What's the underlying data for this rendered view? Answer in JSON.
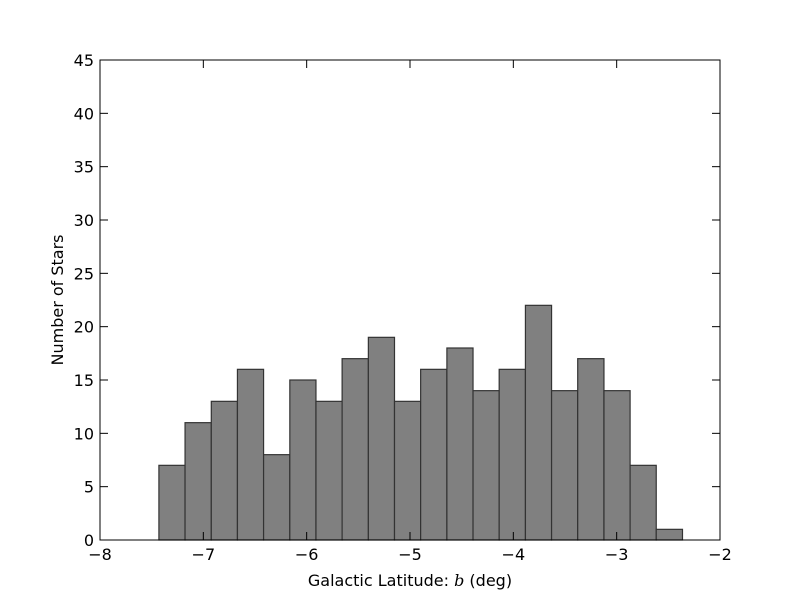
{
  "chart_data": {
    "type": "histogram",
    "title": "",
    "xlabel": "Galactic Latitude: ",
    "xlabel_symbol": "b",
    "xlabel_unit": " (deg)",
    "ylabel": "Number of Stars",
    "xlim": [
      -8,
      -2
    ],
    "ylim": [
      0,
      45
    ],
    "xticks": [
      -8,
      -7,
      -6,
      -5,
      -4,
      -3,
      -2
    ],
    "xtick_labels": [
      "−8",
      "−7",
      "−6",
      "−5",
      "−4",
      "−3",
      "−2"
    ],
    "yticks": [
      0,
      5,
      10,
      15,
      20,
      25,
      30,
      35,
      40,
      45
    ],
    "ytick_labels": [
      "0",
      "5",
      "10",
      "15",
      "20",
      "25",
      "30",
      "35",
      "40",
      "45"
    ],
    "bin_edges": [
      -7.43,
      -7.177,
      -6.923,
      -6.67,
      -6.417,
      -6.163,
      -5.91,
      -5.657,
      -5.403,
      -5.15,
      -4.897,
      -4.643,
      -4.39,
      -4.137,
      -3.883,
      -3.63,
      -3.377,
      -3.123,
      -2.87,
      -2.617,
      -2.363
    ],
    "counts": [
      7,
      11,
      13,
      16,
      8,
      15,
      13,
      17,
      19,
      13,
      16,
      18,
      14,
      16,
      22,
      14,
      17,
      14,
      7,
      1
    ],
    "grid": false,
    "bar_color": "#808080",
    "edge_color": "#333333"
  }
}
